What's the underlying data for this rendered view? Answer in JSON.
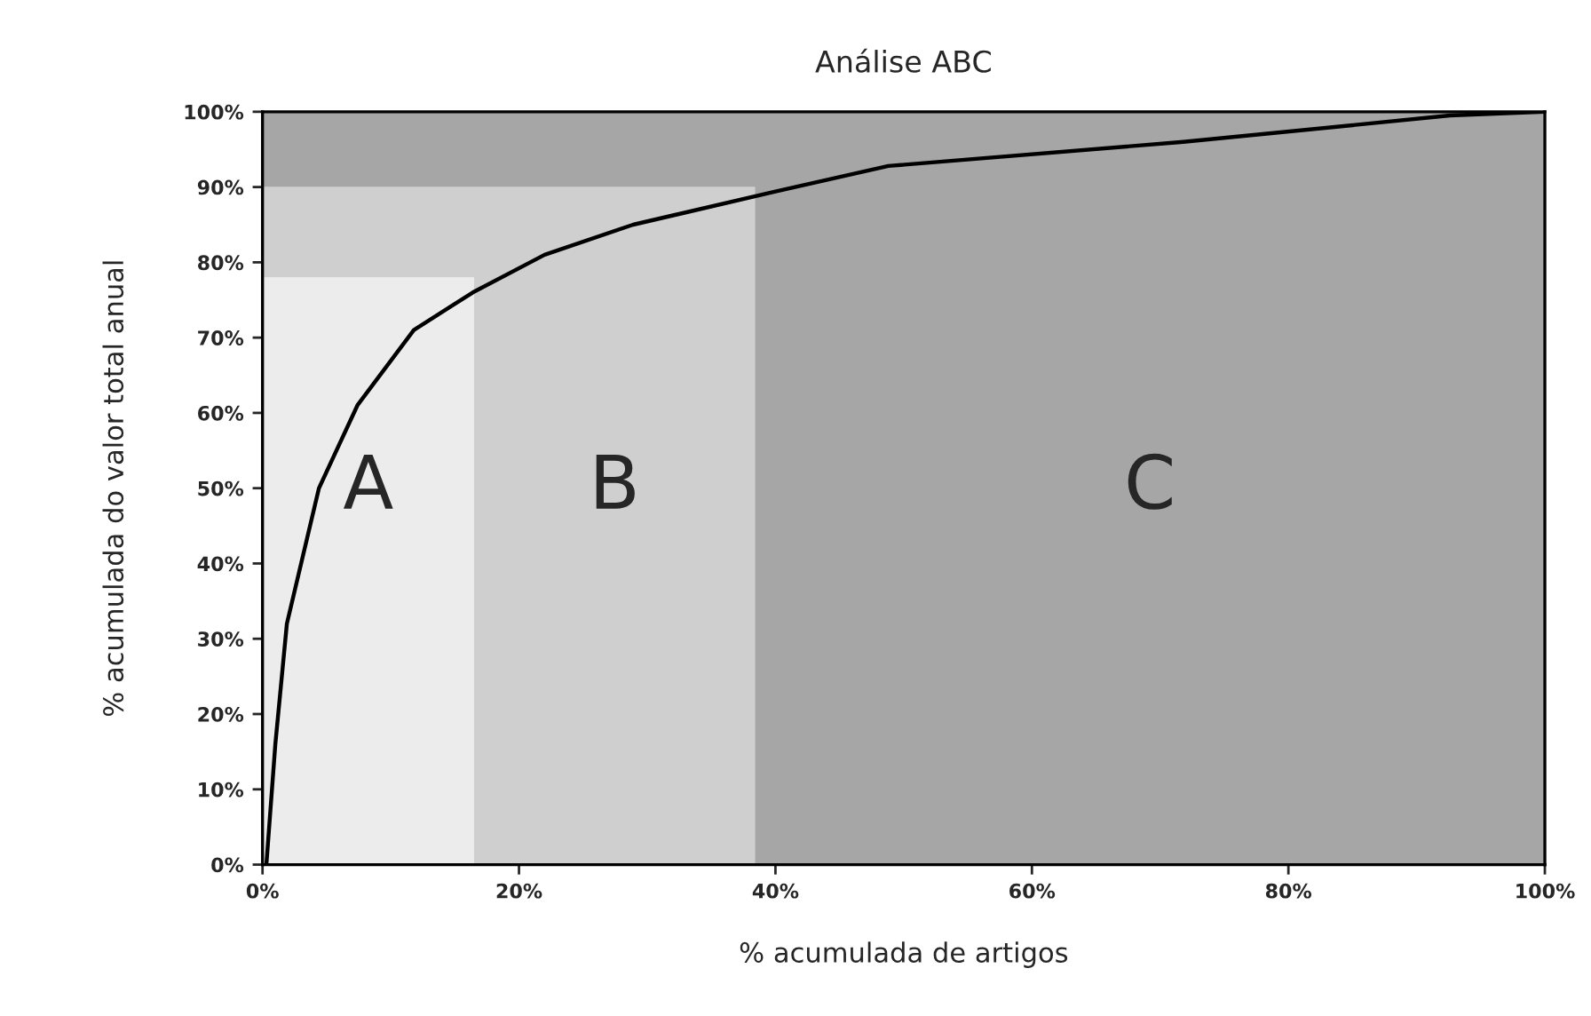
{
  "chart_data": {
    "type": "area",
    "title": "Análise ABC",
    "xlabel": "% acumulada de artigos",
    "ylabel": "% acumulada do valor total anual",
    "stacked": true,
    "series": [
      {
        "name": "A",
        "color": "#ececec",
        "x": [
          0,
          16.5,
          16.5,
          38.4,
          38.4,
          100
        ],
        "values": [
          78,
          78,
          0,
          0,
          0,
          0
        ]
      },
      {
        "name": "B",
        "color": "#cfcfcf",
        "x": [
          0,
          16.5,
          16.5,
          38.4,
          38.4,
          100
        ],
        "values": [
          12,
          12,
          90,
          90,
          0,
          0
        ]
      },
      {
        "name": "C",
        "color": "#a6a6a6",
        "x": [
          0,
          16.5,
          16.5,
          38.4,
          38.4,
          100
        ],
        "values": [
          10,
          10,
          10,
          10,
          100,
          100
        ]
      },
      {
        "type": "line",
        "color": "#000000",
        "x": [
          0.3,
          1,
          1.9,
          4.4,
          7.4,
          11.8,
          16.4,
          22,
          28.9,
          40,
          48.8,
          71.8,
          92.6,
          100
        ],
        "values": [
          0,
          16,
          32,
          50,
          61,
          71,
          76,
          81,
          85,
          89.4,
          92.8,
          96,
          99.5,
          100
        ]
      }
    ],
    "xlim": [
      0,
      100
    ],
    "ylim": [
      0,
      100
    ],
    "xticks": [
      {
        "value": 0,
        "label": "0%"
      },
      {
        "value": 20,
        "label": "20%"
      },
      {
        "value": 40,
        "label": "40%"
      },
      {
        "value": 60,
        "label": "60%"
      },
      {
        "value": 80,
        "label": "80%"
      },
      {
        "value": 100,
        "label": "100%"
      }
    ],
    "yticks": [
      {
        "value": 0,
        "label": "0%"
      },
      {
        "value": 10,
        "label": "10%"
      },
      {
        "value": 20,
        "label": "20%"
      },
      {
        "value": 30,
        "label": "30%"
      },
      {
        "value": 40,
        "label": "40%"
      },
      {
        "value": 50,
        "label": "50%"
      },
      {
        "value": 60,
        "label": "60%"
      },
      {
        "value": 70,
        "label": "70%"
      },
      {
        "value": 80,
        "label": "80%"
      },
      {
        "value": 90,
        "label": "90%"
      },
      {
        "value": 100,
        "label": "100%"
      }
    ],
    "line_style": "solid"
  }
}
